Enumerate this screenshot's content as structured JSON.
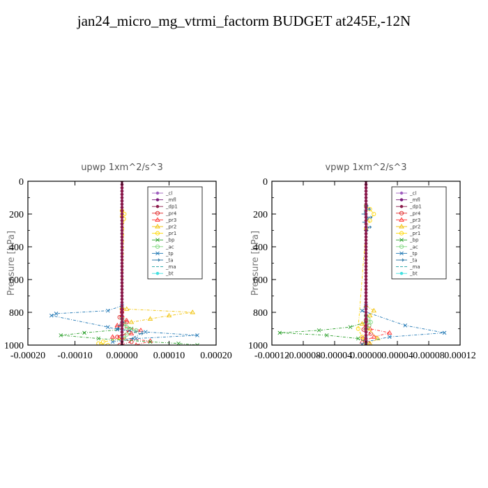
{
  "title": "jan24_micro_mg_vtrmi_factorm  BUDGET at245E,-12N",
  "chart_data": [
    {
      "type": "line",
      "title": "upwp   1xm^2/s^3",
      "ylabel": "Pressure [hPa]",
      "ylim": [
        1000,
        0
      ],
      "xlim": [
        -0.0002,
        0.0002
      ],
      "xticks": [
        {
          "v": -0.0002,
          "label": "-0.00020"
        },
        {
          "v": -0.0001,
          "label": "-0.00010"
        },
        {
          "v": 0.0,
          "label": "0.00000"
        },
        {
          "v": 0.0001,
          "label": "0.00010"
        },
        {
          "v": 0.0002,
          "label": "0.00020"
        }
      ],
      "yticks": [
        {
          "v": 0,
          "label": "0"
        },
        {
          "v": 200,
          "label": "200"
        },
        {
          "v": 400,
          "label": "400"
        },
        {
          "v": 600,
          "label": "600"
        },
        {
          "v": 800,
          "label": "800"
        },
        {
          "v": 1000,
          "label": "1000"
        }
      ],
      "series": [
        {
          "name": "_cl",
          "color": "#a060c0",
          "marker": "dot",
          "x": [
            0,
            0,
            0,
            0,
            0,
            0,
            0,
            0,
            0,
            0,
            0
          ],
          "y": [
            0,
            100,
            200,
            300,
            400,
            500,
            600,
            700,
            800,
            900,
            1000
          ]
        },
        {
          "name": "_mfl",
          "color": "#7a1a7a",
          "marker": "dot",
          "x": [
            0,
            0,
            0,
            0,
            0,
            0,
            0,
            0,
            0,
            0,
            0
          ],
          "y": [
            0,
            100,
            200,
            300,
            400,
            500,
            600,
            700,
            800,
            900,
            1000
          ]
        },
        {
          "name": "_dp1",
          "color": "#8b1a4a",
          "marker": "dot",
          "x": [
            0,
            0,
            0,
            0,
            0,
            0,
            0,
            0,
            0,
            0,
            0
          ],
          "y": [
            0,
            100,
            200,
            300,
            400,
            500,
            600,
            700,
            800,
            900,
            1000
          ]
        },
        {
          "name": "_pr4",
          "color": "#e02020",
          "marker": "circle",
          "x": [
            0,
            0,
            -5e-06,
            1e-05,
            -1e-05,
            1.5e-05,
            -1e-05,
            2e-05,
            -5e-06
          ],
          "y": [
            780,
            800,
            830,
            860,
            890,
            920,
            950,
            980,
            1000
          ]
        },
        {
          "name": "_pr3",
          "color": "#ff3030",
          "marker": "tri",
          "x": [
            0,
            1e-05,
            -1e-05,
            4e-05,
            2e-05,
            -2e-05,
            6e-05,
            3e-05
          ],
          "y": [
            820,
            850,
            880,
            910,
            930,
            950,
            975,
            1000
          ]
        },
        {
          "name": "_pr2",
          "color": "#f0c000",
          "marker": "tri",
          "x": [
            0,
            1e-05,
            0.00015,
            0.0001,
            6e-05,
            2e-05
          ],
          "y": [
            770,
            780,
            800,
            820,
            840,
            860
          ]
        },
        {
          "name": "_pr1",
          "color": "#ffd700",
          "marker": "circle",
          "x": [
            0,
            5e-06,
            0,
            4e-06,
            0,
            -4e-05,
            -5e-05,
            -3e-05
          ],
          "y": [
            180,
            200,
            215,
            230,
            960,
            980,
            990,
            1000
          ]
        },
        {
          "name": "_bp",
          "color": "#2ca02c",
          "marker": "cross",
          "x": [
            0,
            2e-05,
            -8e-05,
            -0.00013,
            -5e-05,
            6e-05,
            0.00012,
            0.00016
          ],
          "y": [
            870,
            900,
            925,
            940,
            960,
            980,
            990,
            1000
          ]
        },
        {
          "name": "_ac",
          "color": "#7fd87f",
          "marker": "circle",
          "x": [
            0,
            5e-06,
            1e-05,
            3e-05,
            1e-05,
            5e-06
          ],
          "y": [
            840,
            870,
            890,
            910,
            935,
            960
          ]
        },
        {
          "name": "_tp",
          "color": "#1f77b4",
          "marker": "cross",
          "x": [
            0,
            -3e-05,
            -0.00014,
            -0.00015,
            -3e-05,
            -1e-05,
            5e-05,
            0.00016,
            3e-05,
            -2e-05
          ],
          "y": [
            760,
            790,
            808,
            820,
            890,
            905,
            920,
            940,
            960,
            980
          ]
        },
        {
          "name": "_ta",
          "color": "#1f6fa0",
          "marker": "arrow",
          "x": [
            0,
            -5e-06,
            -1e-05,
            4e-05,
            2e-05
          ],
          "y": [
            860,
            880,
            900,
            930,
            960
          ]
        },
        {
          "name": "_ma",
          "color": "#17a0a0",
          "marker": "none",
          "x": [
            0,
            3e-06,
            0
          ],
          "y": [
            190,
            200,
            210
          ]
        },
        {
          "name": "_bt",
          "color": "#40e0e0",
          "marker": "dot",
          "x": [
            0,
            0,
            0
          ],
          "y": [
            900,
            950,
            1000
          ]
        }
      ]
    },
    {
      "type": "line",
      "title": "vpwp   1xm^2/s^3",
      "ylabel": "Pressure [hPa]",
      "ylim": [
        1000,
        0
      ],
      "xlim": [
        -0.00012,
        0.00012
      ],
      "xticks": [
        {
          "v": -0.00012,
          "label": "-0.00012"
        },
        {
          "v": -8e-05,
          "label": "-0.00008"
        },
        {
          "v": -4e-05,
          "label": "-0.00004"
        },
        {
          "v": 0.0,
          "label": "0.00000"
        },
        {
          "v": 4e-05,
          "label": "0.00004"
        },
        {
          "v": 8e-05,
          "label": "0.00008"
        },
        {
          "v": 0.00012,
          "label": "0.00012"
        }
      ],
      "yticks": [
        {
          "v": 0,
          "label": "0"
        },
        {
          "v": 200,
          "label": "200"
        },
        {
          "v": 400,
          "label": "400"
        },
        {
          "v": 600,
          "label": "600"
        },
        {
          "v": 800,
          "label": "800"
        },
        {
          "v": 1000,
          "label": "1000"
        }
      ],
      "series": [
        {
          "name": "_cl",
          "color": "#a060c0",
          "marker": "dot",
          "x": [
            0,
            0,
            0,
            0,
            0,
            0,
            0,
            0,
            0,
            0,
            0
          ],
          "y": [
            0,
            100,
            200,
            300,
            400,
            500,
            600,
            700,
            800,
            900,
            1000
          ]
        },
        {
          "name": "_mfl",
          "color": "#7a1a7a",
          "marker": "dot",
          "x": [
            0,
            0,
            0,
            0,
            0,
            0,
            0,
            0,
            0,
            0,
            0
          ],
          "y": [
            0,
            100,
            200,
            300,
            400,
            500,
            600,
            700,
            800,
            900,
            1000
          ]
        },
        {
          "name": "_dp1",
          "color": "#8b1a4a",
          "marker": "dot",
          "x": [
            0,
            0,
            0,
            0,
            0,
            0,
            0,
            0,
            0,
            0,
            0
          ],
          "y": [
            0,
            100,
            200,
            300,
            400,
            500,
            600,
            700,
            800,
            900,
            1000
          ]
        },
        {
          "name": "_pr4",
          "color": "#e02020",
          "marker": "circle",
          "x": [
            0,
            4e-06,
            -3e-06,
            6e-06,
            -4e-06,
            3e-06
          ],
          "y": [
            850,
            880,
            905,
            930,
            960,
            990
          ]
        },
        {
          "name": "_pr3",
          "color": "#ff3030",
          "marker": "tri",
          "x": [
            0,
            5e-06,
            3e-05,
            1e-05,
            -5e-06
          ],
          "y": [
            880,
            900,
            925,
            950,
            980
          ]
        },
        {
          "name": "_pr2",
          "color": "#f0c000",
          "marker": "tri",
          "x": [
            0,
            1e-05,
            5e-06,
            -5e-06,
            3e-06,
            1.5e-05,
            5e-06
          ],
          "y": [
            760,
            790,
            820,
            870,
            900,
            960,
            990
          ]
        },
        {
          "name": "_pr1",
          "color": "#ffd700",
          "marker": "circle",
          "x": [
            0,
            5e-06,
            1e-05,
            5e-06,
            0,
            -1e-05,
            -5e-06,
            0
          ],
          "y": [
            150,
            170,
            200,
            240,
            290,
            900,
            950,
            990
          ]
        },
        {
          "name": "_bp",
          "color": "#2ca02c",
          "marker": "cross",
          "x": [
            0,
            -2e-05,
            -6e-05,
            -0.00011,
            -5e-05,
            -1e-05,
            0
          ],
          "y": [
            860,
            890,
            910,
            925,
            940,
            960,
            980
          ]
        },
        {
          "name": "_ac",
          "color": "#7fd87f",
          "marker": "circle",
          "x": [
            0,
            3e-06,
            6e-06,
            4e-06,
            0
          ],
          "y": [
            820,
            840,
            860,
            880,
            900
          ]
        },
        {
          "name": "_tp",
          "color": "#1f77b4",
          "marker": "cross",
          "x": [
            0,
            -5e-06,
            5e-05,
            0.0001,
            3e-05,
            0,
            -5e-06
          ],
          "y": [
            760,
            790,
            880,
            925,
            950,
            980,
            995
          ]
        },
        {
          "name": "_ta",
          "color": "#1f6fa0",
          "marker": "arrow",
          "x": [
            0,
            3e-06,
            -3e-06,
            5e-06,
            -2e-06,
            4e-06,
            0
          ],
          "y": [
            150,
            170,
            200,
            220,
            250,
            280,
            300
          ]
        },
        {
          "name": "_ma",
          "color": "#17a0a0",
          "marker": "none",
          "x": [
            0,
            -3e-06,
            2e-06,
            0
          ],
          "y": [
            150,
            180,
            220,
            260
          ]
        },
        {
          "name": "_bt",
          "color": "#40e0e0",
          "marker": "dot",
          "x": [
            0,
            0,
            0
          ],
          "y": [
            900,
            950,
            1000
          ]
        }
      ]
    }
  ]
}
